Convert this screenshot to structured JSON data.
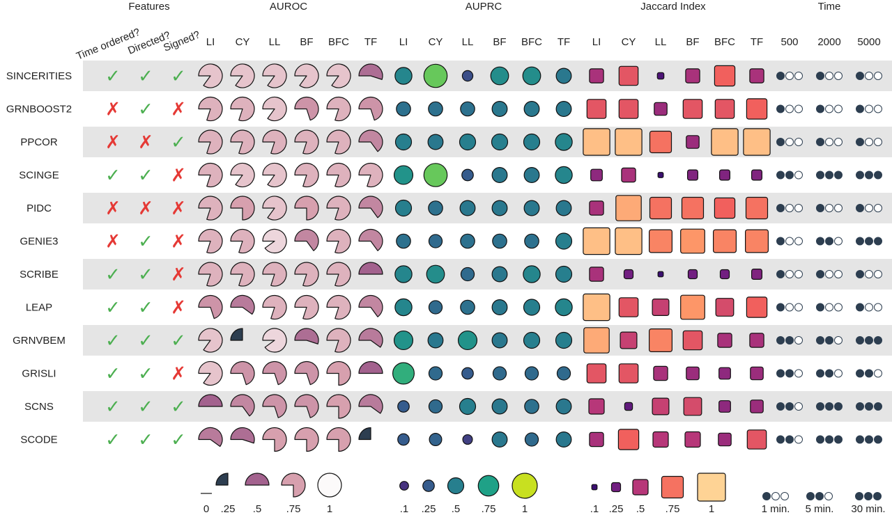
{
  "group_headers": {
    "features": "Features",
    "auroc": "AUROC",
    "auprc": "AUPRC",
    "jaccard": "Jaccard Index",
    "time": "Time"
  },
  "feature_headers": [
    "Time ordered?",
    "Directed?",
    "Signed?"
  ],
  "dataset_headers": [
    "LI",
    "CY",
    "LL",
    "BF",
    "BFC",
    "TF"
  ],
  "time_headers": [
    "500",
    "2000",
    "5000"
  ],
  "colors": {
    "check": "#4caf50",
    "cross": "#e53935",
    "row_band": "#e5e5e5",
    "dark": "#2d3e50"
  },
  "chart_data": {
    "type": "table",
    "methods": [
      "SINCERITIES",
      "GRNBOOST2",
      "PPCOR",
      "SCINGE",
      "PIDC",
      "GENIE3",
      "SCRIBE",
      "LEAP",
      "GRNVBEM",
      "GRISLI",
      "SCNS",
      "SCODE"
    ],
    "features": [
      [
        true,
        true,
        true
      ],
      [
        false,
        true,
        false
      ],
      [
        false,
        false,
        true
      ],
      [
        true,
        true,
        false
      ],
      [
        false,
        false,
        false
      ],
      [
        false,
        true,
        false
      ],
      [
        true,
        true,
        false
      ],
      [
        true,
        true,
        false
      ],
      [
        true,
        true,
        true
      ],
      [
        true,
        true,
        false
      ],
      [
        true,
        true,
        true
      ],
      [
        true,
        true,
        true
      ]
    ],
    "auroc": [
      [
        0.85,
        0.85,
        0.85,
        0.85,
        0.85,
        0.55
      ],
      [
        0.8,
        0.8,
        0.85,
        0.7,
        0.8,
        0.7
      ],
      [
        0.8,
        0.8,
        0.8,
        0.8,
        0.8,
        0.65
      ],
      [
        0.8,
        0.85,
        0.85,
        0.8,
        0.8,
        0.8
      ],
      [
        0.8,
        0.75,
        0.85,
        0.75,
        0.8,
        0.65
      ],
      [
        0.8,
        0.8,
        0.9,
        0.65,
        0.8,
        0.65
      ],
      [
        0.8,
        0.8,
        0.8,
        0.8,
        0.8,
        0.5
      ],
      [
        0.7,
        0.6,
        0.8,
        0.8,
        0.8,
        0.65
      ],
      [
        0.85,
        0.25,
        0.9,
        0.55,
        0.8,
        0.6
      ],
      [
        0.85,
        0.7,
        0.7,
        0.7,
        0.75,
        0.5
      ],
      [
        0.5,
        0.65,
        0.7,
        0.7,
        0.75,
        0.6
      ],
      [
        0.6,
        0.55,
        0.75,
        0.75,
        0.75,
        0.25
      ]
    ],
    "auprc": [
      [
        0.55,
        0.9,
        0.2,
        0.6,
        0.6,
        0.45
      ],
      [
        0.4,
        0.4,
        0.4,
        0.45,
        0.45,
        0.45
      ],
      [
        0.5,
        0.45,
        0.5,
        0.5,
        0.5,
        0.55
      ],
      [
        0.65,
        0.9,
        0.25,
        0.45,
        0.45,
        0.55
      ],
      [
        0.5,
        0.4,
        0.45,
        0.45,
        0.45,
        0.45
      ],
      [
        0.4,
        0.35,
        0.4,
        0.4,
        0.4,
        0.5
      ],
      [
        0.55,
        0.6,
        0.35,
        0.45,
        0.55,
        0.5
      ],
      [
        0.55,
        0.35,
        0.4,
        0.45,
        0.5,
        0.55
      ],
      [
        0.65,
        0.45,
        0.65,
        0.45,
        0.5,
        0.5
      ],
      [
        0.8,
        0.35,
        0.25,
        0.35,
        0.35,
        0.35
      ],
      [
        0.25,
        0.35,
        0.5,
        0.45,
        0.4,
        0.45
      ],
      [
        0.25,
        0.3,
        0.15,
        0.45,
        0.35,
        0.45
      ]
    ],
    "jaccard": [
      [
        0.45,
        0.65,
        0.15,
        0.45,
        0.7,
        0.45
      ],
      [
        0.65,
        0.65,
        0.4,
        0.65,
        0.65,
        0.7
      ],
      [
        0.95,
        0.95,
        0.75,
        0.4,
        0.95,
        0.95
      ],
      [
        0.35,
        0.45,
        0.1,
        0.3,
        0.3,
        0.3
      ],
      [
        0.45,
        0.9,
        0.75,
        0.75,
        0.7,
        0.75
      ],
      [
        0.95,
        0.95,
        0.8,
        0.85,
        0.8,
        0.8
      ],
      [
        0.45,
        0.25,
        0.1,
        0.25,
        0.25,
        0.3
      ],
      [
        0.95,
        0.65,
        0.55,
        0.85,
        0.6,
        0.7
      ],
      [
        0.9,
        0.55,
        0.8,
        0.65,
        0.45,
        0.45
      ],
      [
        0.65,
        0.65,
        0.45,
        0.4,
        0.35,
        0.4
      ],
      [
        0.5,
        0.2,
        0.55,
        0.6,
        0.35,
        0.4
      ],
      [
        0.45,
        0.7,
        0.5,
        0.5,
        0.4,
        0.65
      ]
    ],
    "time_levels": [
      [
        1,
        1,
        1
      ],
      [
        1,
        1,
        1
      ],
      [
        1,
        1,
        1
      ],
      [
        2,
        3,
        3
      ],
      [
        1,
        1,
        1
      ],
      [
        1,
        2,
        3
      ],
      [
        1,
        1,
        1
      ],
      [
        1,
        1,
        1
      ],
      [
        2,
        2,
        3
      ],
      [
        2,
        2,
        2
      ],
      [
        2,
        3,
        3
      ],
      [
        2,
        3,
        3
      ]
    ]
  },
  "legend": {
    "auroc": [
      {
        "value": 0,
        "label": "0"
      },
      {
        "value": 0.25,
        "label": ".25"
      },
      {
        "value": 0.5,
        "label": ".5"
      },
      {
        "value": 0.75,
        "label": ".75"
      },
      {
        "value": 1,
        "label": "1"
      }
    ],
    "auprc": [
      {
        "value": 0.1,
        "label": ".1"
      },
      {
        "value": 0.25,
        "label": ".25"
      },
      {
        "value": 0.5,
        "label": ".5"
      },
      {
        "value": 0.75,
        "label": ".75"
      },
      {
        "value": 1,
        "label": "1"
      }
    ],
    "jaccard": [
      {
        "value": 0.1,
        "label": ".1"
      },
      {
        "value": 0.25,
        "label": ".25"
      },
      {
        "value": 0.5,
        "label": ".5"
      },
      {
        "value": 0.75,
        "label": ".75"
      },
      {
        "value": 1,
        "label": "1"
      }
    ],
    "time": [
      {
        "level": 1,
        "label": "1 min."
      },
      {
        "level": 2,
        "label": "5 min."
      },
      {
        "level": 3,
        "label": "30 min."
      }
    ]
  }
}
